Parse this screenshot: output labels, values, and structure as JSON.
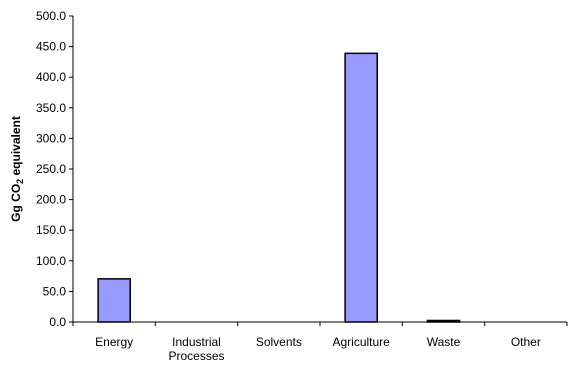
{
  "chart_data": {
    "type": "bar",
    "title": "",
    "xlabel": "",
    "ylabel_parts": [
      "Gg CO",
      "2",
      " equivalent"
    ],
    "categories": [
      [
        "Energy"
      ],
      [
        "Industrial",
        "Processes"
      ],
      [
        "Solvents"
      ],
      [
        "Agriculture"
      ],
      [
        "Waste"
      ],
      [
        "Other"
      ]
    ],
    "values": [
      70.5,
      0,
      0,
      439,
      2.5,
      0
    ],
    "ylim": [
      0,
      500
    ],
    "yticks": [
      "0.0",
      "50.0",
      "100.0",
      "150.0",
      "200.0",
      "250.0",
      "300.0",
      "350.0",
      "400.0",
      "450.0",
      "500.0"
    ],
    "grid": false,
    "legend": "none",
    "bar_color": "#9999ff",
    "bar_edge_color": "#000000"
  }
}
